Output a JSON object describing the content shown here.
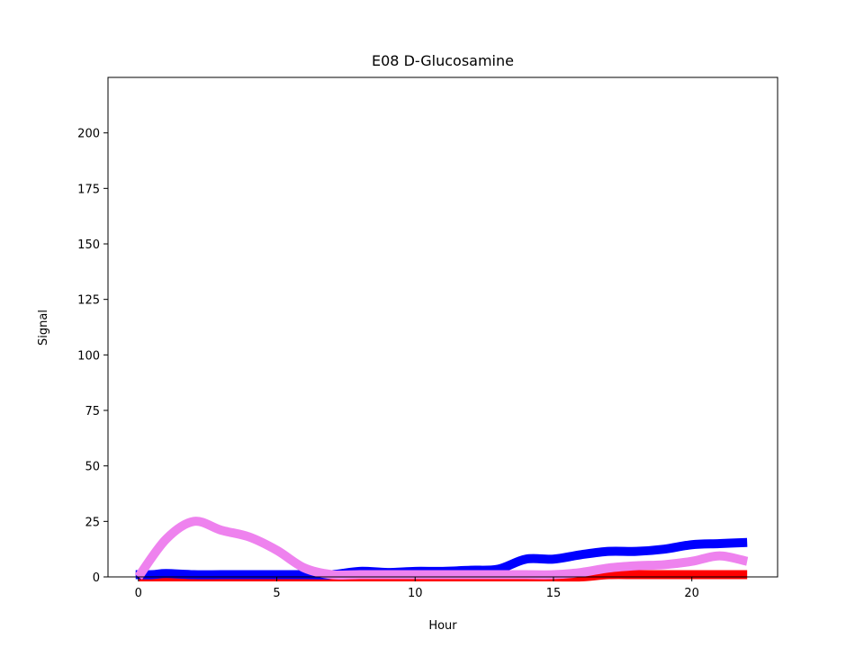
{
  "chart_data": {
    "type": "line",
    "title": "E08 D-Glucosamine",
    "xlabel": "Hour",
    "ylabel": "Signal",
    "xlim": [
      -1.1,
      23.1
    ],
    "ylim": [
      0,
      225
    ],
    "xticks": [
      0,
      5,
      10,
      15,
      20
    ],
    "yticks": [
      0,
      25,
      50,
      75,
      100,
      125,
      150,
      175,
      200
    ],
    "grid": false,
    "legend": "none",
    "series": [
      {
        "color": "#ff0000",
        "x": [
          0,
          1,
          2,
          3,
          4,
          5,
          6,
          7,
          8,
          9,
          10,
          11,
          12,
          13,
          14,
          15,
          16,
          17,
          18,
          19,
          20,
          21,
          22
        ],
        "y": [
          0,
          0,
          0,
          0,
          0,
          0,
          0,
          0,
          0,
          0,
          0,
          0,
          0,
          0,
          0,
          0,
          0,
          1,
          1,
          1,
          1,
          1,
          1
        ]
      },
      {
        "color": "#0000ff",
        "x": [
          -0.1,
          0.5,
          1,
          2,
          3,
          4,
          5,
          6,
          7,
          8,
          9,
          10,
          11,
          12,
          13,
          14,
          15,
          16,
          17,
          18,
          19,
          20,
          21,
          22
        ],
        "y": [
          1,
          1,
          1.5,
          1,
          1,
          1,
          1,
          1,
          1,
          2.5,
          2,
          2.5,
          2.5,
          3,
          3.5,
          8,
          8,
          10,
          11.5,
          11.5,
          12.5,
          14.5,
          15,
          15.5
        ]
      },
      {
        "color": "#ee82ee",
        "x": [
          0,
          1,
          2,
          3,
          4,
          5,
          6,
          7,
          8,
          9,
          10,
          11,
          12,
          13,
          14,
          15,
          16,
          17,
          18,
          19,
          20,
          21,
          22
        ],
        "y": [
          0,
          17,
          25,
          21,
          18,
          12,
          4,
          1,
          1,
          1,
          1,
          1,
          1,
          1,
          1,
          1,
          2,
          4,
          5,
          5.5,
          7,
          9.5,
          7
        ]
      }
    ]
  }
}
